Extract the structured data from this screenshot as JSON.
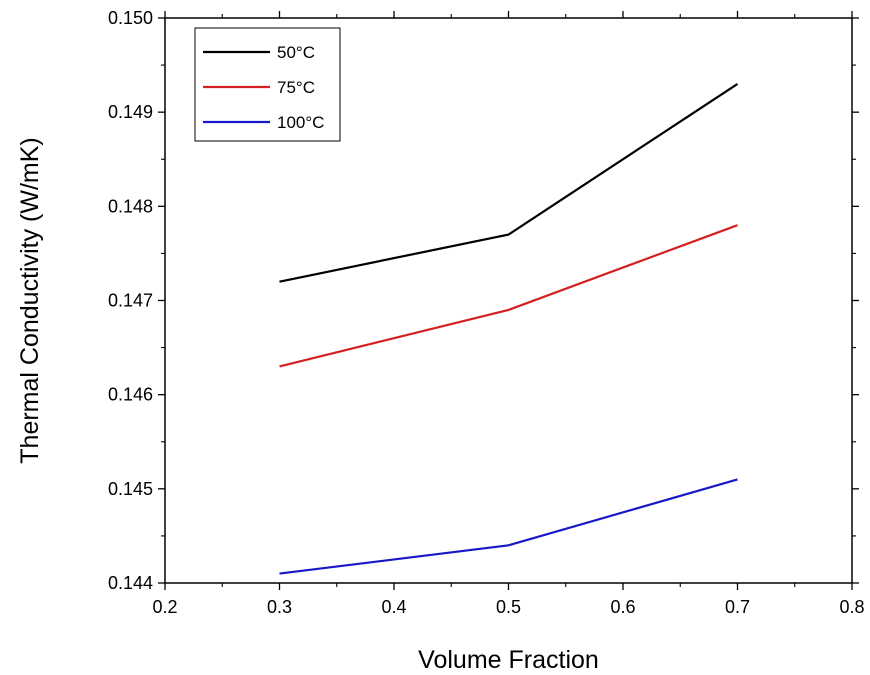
{
  "chart_data": {
    "type": "line",
    "title": "",
    "xlabel": "Volume Fraction",
    "ylabel": "Thermal Conductivity (W/mK)",
    "xlim": [
      0.2,
      0.8
    ],
    "ylim": [
      0.144,
      0.15
    ],
    "xticks": [
      "0.2",
      "0.3",
      "0.4",
      "0.5",
      "0.6",
      "0.7",
      "0.8"
    ],
    "yticks": [
      "0.144",
      "0.145",
      "0.146",
      "0.147",
      "0.148",
      "0.149",
      "0.150"
    ],
    "grid": false,
    "legend_position": "top-left",
    "x": [
      0.3,
      0.5,
      0.7
    ],
    "series": [
      {
        "name": "50°C",
        "color": "#000000",
        "values": [
          0.1472,
          0.1477,
          0.1493
        ]
      },
      {
        "name": "75°C",
        "color": "#d42020",
        "values": [
          0.1463,
          0.1469,
          0.1478
        ]
      },
      {
        "name": "100°C",
        "color": "#1818c8",
        "values": [
          0.1441,
          0.1444,
          0.1451
        ]
      }
    ]
  }
}
